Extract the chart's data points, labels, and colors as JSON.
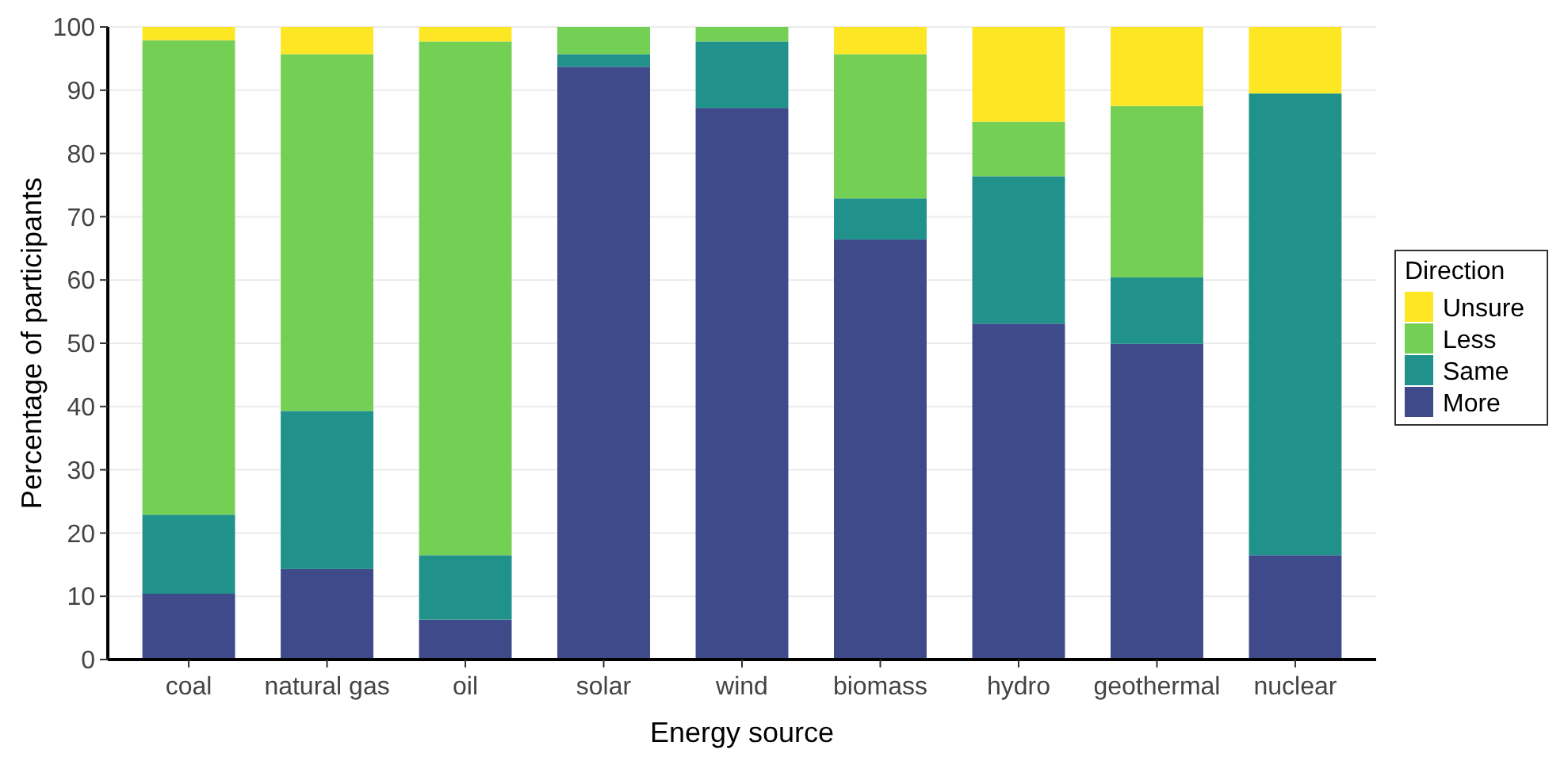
{
  "chart_data": {
    "type": "bar",
    "stacked": true,
    "xlabel": "Energy source",
    "ylabel": "Percentage of participants",
    "legend_title": "Direction",
    "legend": "right",
    "grid": "y",
    "categories": [
      "coal",
      "natural gas",
      "oil",
      "solar",
      "wind",
      "biomass",
      "hydro",
      "geothermal",
      "nuclear"
    ],
    "ylim": [
      0,
      100
    ],
    "yticks": [
      0,
      10,
      20,
      30,
      40,
      50,
      60,
      70,
      80,
      90,
      100
    ],
    "series": [
      {
        "name": "More",
        "color": "#3e4a89",
        "values": [
          10.4,
          14.3,
          6.3,
          93.7,
          87.2,
          66.4,
          53.1,
          49.9,
          16.5
        ]
      },
      {
        "name": "Same",
        "color": "#21918c",
        "values": [
          12.5,
          25,
          10.2,
          2,
          10.5,
          6.5,
          23.3,
          10.5,
          73
        ]
      },
      {
        "name": "Less",
        "color": "#74d055",
        "values": [
          75,
          56.4,
          81.2,
          4.3,
          2.3,
          22.8,
          8.6,
          27.1,
          0
        ]
      },
      {
        "name": "Unsure",
        "color": "#fde725",
        "values": [
          2.1,
          4.3,
          2.3,
          0,
          0,
          4.3,
          15,
          12.5,
          10.5
        ]
      }
    ]
  }
}
